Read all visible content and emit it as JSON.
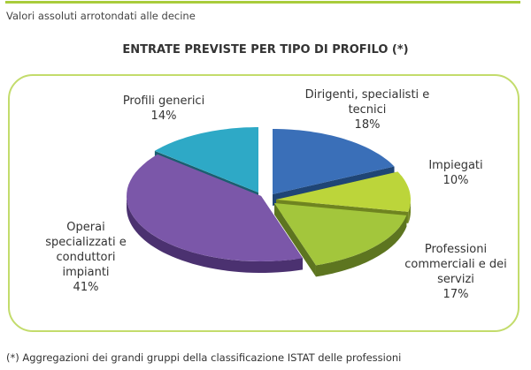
{
  "subtitle": "Valori assoluti arrotondati alle decine",
  "footnote": "(*) Aggregazioni dei grandi gruppi della classificazione ISTAT delle professioni",
  "chart_data": {
    "type": "pie",
    "title": "ENTRATE PREVISTE PER TIPO DI PROFILO (*)",
    "categories": [
      "Dirigenti, specialisti e tecnici",
      "Impiegati",
      "Professioni commerciali e dei servizi",
      "Operai specializzati e conduttori impianti",
      "Profili generici"
    ],
    "values": [
      18,
      10,
      17,
      41,
      14
    ],
    "labels": [
      "18%",
      "10%",
      "17%",
      "41%",
      "14%"
    ],
    "colors": [
      "#3a6fb8",
      "#bcd53a",
      "#a3c63c",
      "#7b57a9",
      "#2ea9c6"
    ],
    "side_colors": [
      "#1f4575",
      "#6f8420",
      "#5d7520",
      "#4b3170",
      "#1a5f70"
    ]
  }
}
